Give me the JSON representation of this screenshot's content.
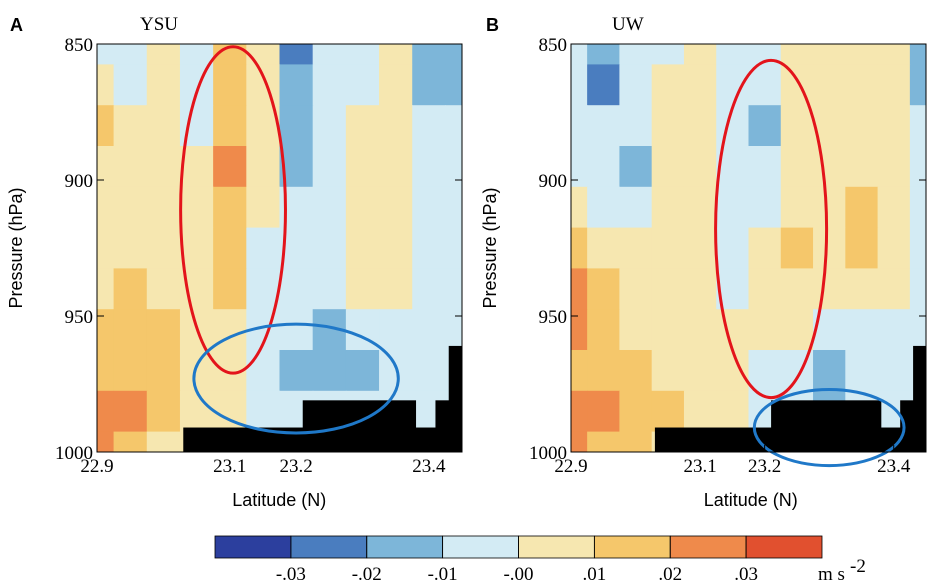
{
  "chart_data": [
    {
      "type": "contour",
      "panel": "A",
      "title": "YSU",
      "x_label": "Latitude (N)",
      "y_label": "Pressure (hPa)",
      "xlim": [
        22.9,
        23.45
      ],
      "ylim": [
        1000,
        850
      ],
      "xticks": [
        22.9,
        23.1,
        23.2,
        23.4
      ],
      "yticks": [
        850,
        900,
        950,
        1000
      ],
      "x": [
        22.9,
        22.95,
        23.0,
        23.05,
        23.1,
        23.15,
        23.2,
        23.25,
        23.3,
        23.35,
        23.4,
        23.45
      ],
      "y": [
        850,
        865,
        880,
        895,
        910,
        925,
        940,
        955,
        970,
        985,
        1000
      ],
      "z": [
        [
          -0.005,
          -0.005,
          0.005,
          -0.005,
          0.015,
          0.005,
          -0.025,
          -0.005,
          -0.005,
          0.005,
          -0.015,
          -0.015
        ],
        [
          0.005,
          -0.005,
          0.005,
          -0.005,
          0.015,
          0.005,
          -0.015,
          -0.005,
          -0.005,
          0.005,
          -0.015,
          -0.015
        ],
        [
          0.015,
          0.005,
          0.005,
          -0.005,
          0.015,
          0.005,
          -0.015,
          -0.005,
          0.005,
          0.005,
          -0.005,
          -0.005
        ],
        [
          0.005,
          0.005,
          0.005,
          0.005,
          0.025,
          0.005,
          -0.015,
          -0.005,
          0.005,
          0.005,
          -0.005,
          -0.005
        ],
        [
          0.005,
          0.005,
          0.005,
          0.005,
          0.015,
          0.005,
          -0.005,
          -0.005,
          0.005,
          0.005,
          -0.005,
          -0.005
        ],
        [
          0.005,
          0.005,
          0.005,
          0.005,
          0.015,
          -0.005,
          -0.005,
          -0.005,
          0.005,
          0.005,
          -0.005,
          -0.005
        ],
        [
          0.005,
          0.015,
          0.005,
          0.005,
          0.015,
          -0.005,
          -0.005,
          -0.005,
          0.005,
          0.005,
          -0.005,
          -0.005
        ],
        [
          0.015,
          0.015,
          0.015,
          0.005,
          0.005,
          -0.005,
          -0.005,
          -0.015,
          -0.005,
          -0.005,
          -0.005,
          -0.005
        ],
        [
          0.015,
          0.015,
          0.015,
          0.005,
          0.005,
          -0.005,
          -0.015,
          -0.015,
          -0.015,
          -0.005,
          -0.005,
          -0.005
        ],
        [
          0.025,
          0.025,
          0.015,
          0.005,
          0.005,
          -0.005,
          -0.005,
          -0.005,
          -0.005,
          -0.005,
          -0.005,
          -0.005
        ],
        [
          0.025,
          0.015,
          0.005,
          0.005,
          -0.005,
          -0.005,
          -0.005,
          -0.005,
          -0.005,
          -0.005,
          -0.005,
          -0.005
        ]
      ],
      "terrain": {
        "x0": [
          23.03,
          23.21,
          23.38,
          23.41,
          23.43
        ],
        "x1": [
          23.21,
          23.38,
          23.41,
          23.43,
          23.45
        ],
        "top": [
          991,
          981,
          991,
          981,
          961
        ]
      },
      "ellipses": [
        {
          "cx": 23.105,
          "cy": 911,
          "rx": 0.079,
          "ry": 60,
          "color": "#e3141b"
        },
        {
          "cx": 23.2,
          "cy": 973,
          "rx": 0.154,
          "ry": 20,
          "color": "#1f78c8"
        }
      ]
    },
    {
      "type": "contour",
      "panel": "B",
      "title": "UW",
      "x_label": "Latitude (N)",
      "y_label": "Pressure (hPa)",
      "xlim": [
        22.9,
        23.45
      ],
      "ylim": [
        1000,
        850
      ],
      "xticks": [
        22.9,
        23.1,
        23.2,
        23.4
      ],
      "yticks": [
        850,
        900,
        950,
        1000
      ],
      "x": [
        22.9,
        22.95,
        23.0,
        23.05,
        23.1,
        23.15,
        23.2,
        23.25,
        23.3,
        23.35,
        23.4,
        23.45
      ],
      "y": [
        850,
        865,
        880,
        895,
        910,
        925,
        940,
        955,
        970,
        985,
        1000
      ],
      "z": [
        [
          -0.005,
          -0.015,
          -0.005,
          -0.005,
          0.005,
          -0.005,
          -0.005,
          0.005,
          0.005,
          0.005,
          0.005,
          -0.015
        ],
        [
          -0.005,
          -0.025,
          -0.005,
          0.005,
          0.005,
          -0.005,
          -0.005,
          0.005,
          0.005,
          0.005,
          0.005,
          -0.015
        ],
        [
          -0.005,
          -0.005,
          -0.005,
          0.005,
          0.005,
          -0.005,
          -0.015,
          0.005,
          0.005,
          0.005,
          0.005,
          -0.005
        ],
        [
          -0.005,
          -0.005,
          -0.015,
          0.005,
          0.005,
          -0.005,
          -0.005,
          0.005,
          0.005,
          0.005,
          0.005,
          -0.005
        ],
        [
          0.005,
          -0.005,
          -0.005,
          0.005,
          0.005,
          -0.005,
          -0.005,
          0.005,
          0.005,
          0.015,
          0.005,
          -0.005
        ],
        [
          0.015,
          0.005,
          0.005,
          0.005,
          0.005,
          -0.005,
          0.005,
          0.015,
          0.005,
          0.015,
          0.005,
          -0.005
        ],
        [
          0.025,
          0.015,
          0.005,
          0.005,
          0.005,
          -0.005,
          0.005,
          0.005,
          0.005,
          0.005,
          0.005,
          -0.005
        ],
        [
          0.025,
          0.015,
          0.005,
          0.005,
          0.005,
          0.005,
          0.005,
          0.005,
          -0.005,
          -0.005,
          -0.005,
          -0.005
        ],
        [
          0.015,
          0.015,
          0.015,
          0.005,
          0.005,
          0.005,
          -0.005,
          -0.005,
          -0.015,
          -0.005,
          -0.005,
          -0.005
        ],
        [
          0.025,
          0.025,
          0.015,
          0.015,
          0.005,
          0.005,
          -0.005,
          -0.005,
          -0.015,
          -0.005,
          -0.005,
          -0.005
        ],
        [
          0.025,
          0.015,
          0.015,
          0.005,
          0.005,
          -0.005,
          -0.005,
          -0.005,
          -0.005,
          -0.005,
          -0.005,
          -0.005
        ]
      ],
      "terrain": {
        "x0": [
          23.03,
          23.21,
          23.38,
          23.41,
          23.43
        ],
        "x1": [
          23.21,
          23.38,
          23.41,
          23.43,
          23.45
        ],
        "top": [
          991,
          981,
          991,
          981,
          961
        ]
      },
      "ellipses": [
        {
          "cx": 23.21,
          "cy": 918,
          "rx": 0.086,
          "ry": 62,
          "color": "#e3141b"
        },
        {
          "cx": 23.3,
          "cy": 991,
          "rx": 0.116,
          "ry": 14,
          "color": "#1f78c8"
        }
      ]
    }
  ],
  "colorbar": {
    "limits": [
      -0.04,
      0.04
    ],
    "colors": [
      "#2c3f9e",
      "#4a7dbf",
      "#7db6d9",
      "#d3ebf4",
      "#f6e7b0",
      "#f5c76b",
      "#ef8a4b",
      "#e1502f"
    ],
    "ticks": [
      {
        "value": -0.03,
        "label": "-.03"
      },
      {
        "value": -0.02,
        "label": "-.02"
      },
      {
        "value": -0.01,
        "label": "-.01"
      },
      {
        "value": 0,
        "label": "-.00"
      },
      {
        "value": 0.01,
        "label": ".01"
      },
      {
        "value": 0.02,
        "label": ".02"
      },
      {
        "value": 0.03,
        "label": ".03"
      }
    ],
    "unit": "m s",
    "unit_sup": "-2"
  }
}
